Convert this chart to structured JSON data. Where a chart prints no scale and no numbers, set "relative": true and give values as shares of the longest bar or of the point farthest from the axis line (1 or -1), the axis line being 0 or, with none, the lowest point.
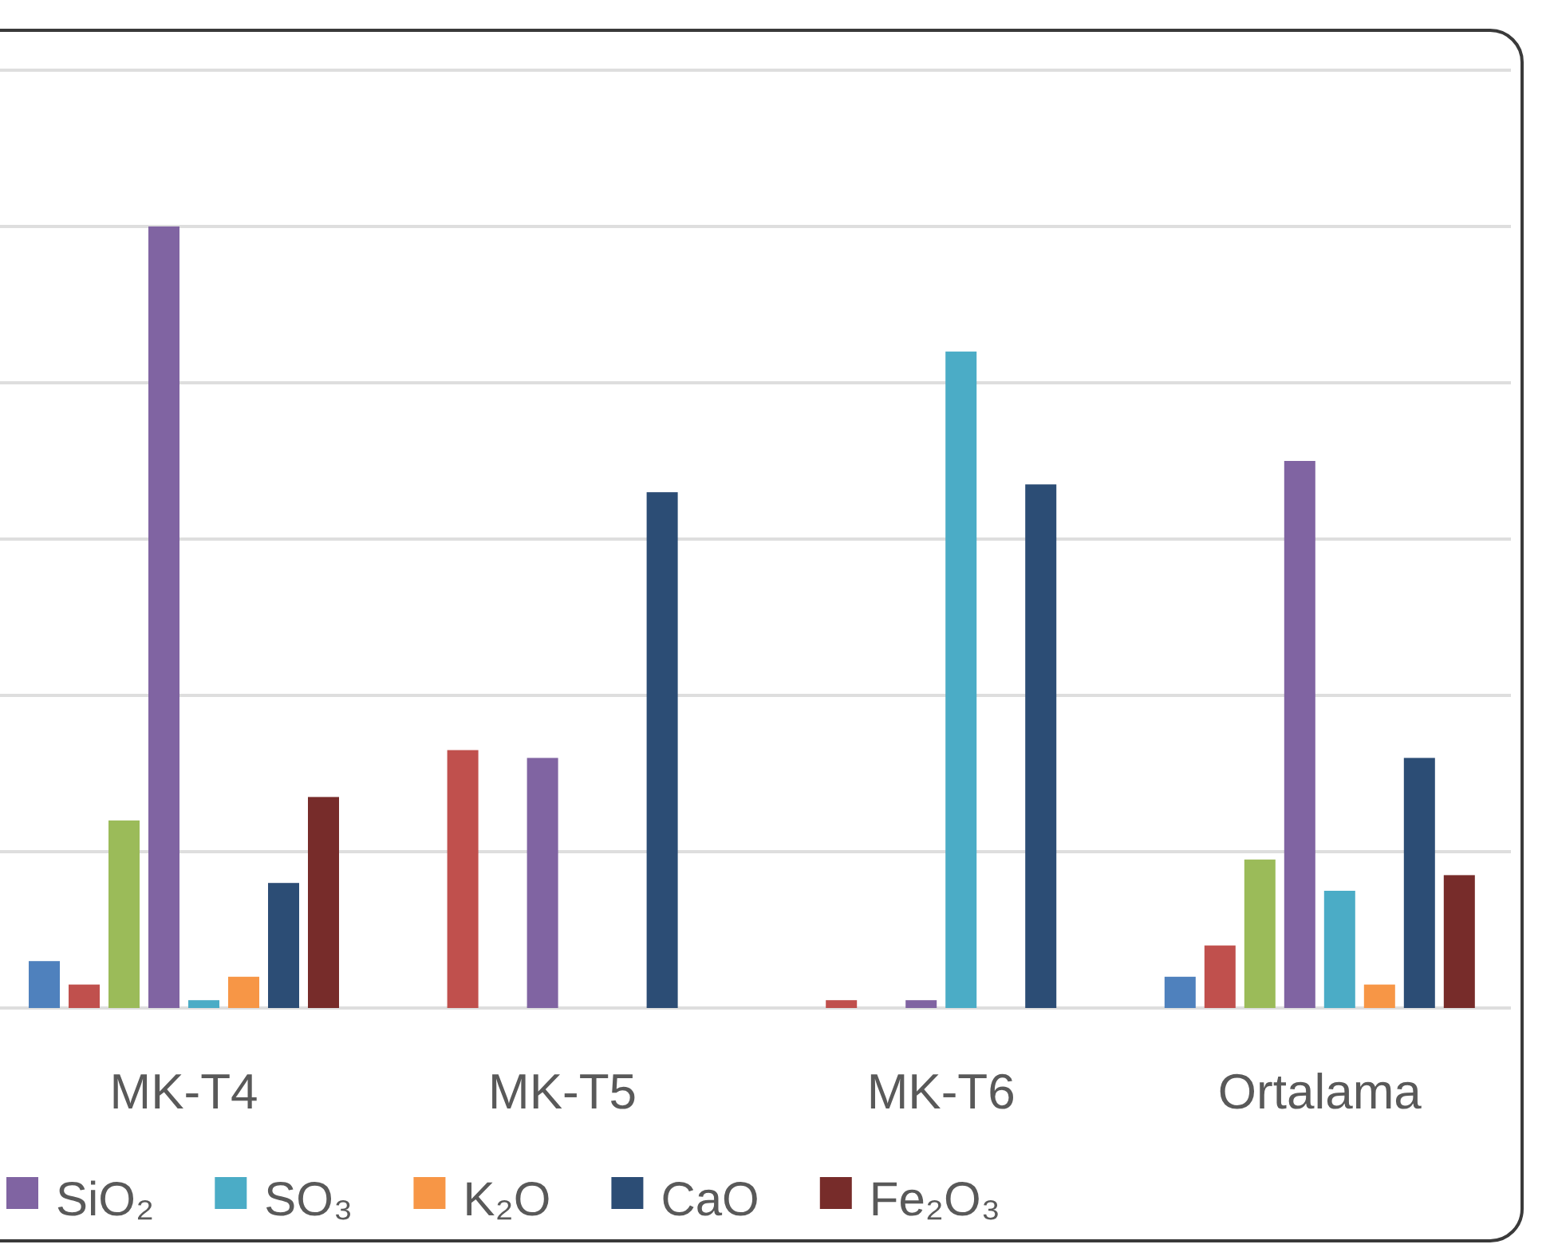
{
  "chart_data": {
    "type": "bar",
    "relative": true,
    "categories": [
      "MK-T4",
      "MK-T5",
      "MK-T6",
      "Ortalama"
    ],
    "series": [
      {
        "color": "#4f81bd",
        "values": [
          0.06,
          null,
          null,
          0.04
        ]
      },
      {
        "color": "#c0504d",
        "values": [
          0.03,
          0.33,
          0.01,
          0.08
        ]
      },
      {
        "color": "#9bbb59",
        "values": [
          0.24,
          null,
          null,
          0.19
        ]
      },
      {
        "name": "SiO₂",
        "color": "#8064a2",
        "values": [
          1,
          0.32,
          0.01,
          0.7
        ]
      },
      {
        "name": "SO₃",
        "color": "#4bacc6",
        "values": [
          0.01,
          null,
          0.84,
          0.15
        ]
      },
      {
        "name": "K₂O",
        "color": "#f79646",
        "values": [
          0.04,
          null,
          null,
          0.03
        ]
      },
      {
        "name": "CaO",
        "color": "#2c4d75",
        "values": [
          0.16,
          0.66,
          0.67,
          0.32
        ]
      },
      {
        "name": "Fe₂O₃",
        "color": "#772c2a",
        "values": [
          0.27,
          null,
          null,
          0.17
        ]
      }
    ],
    "grid": "y",
    "tick_labels": "x",
    "legend": "bottom"
  }
}
